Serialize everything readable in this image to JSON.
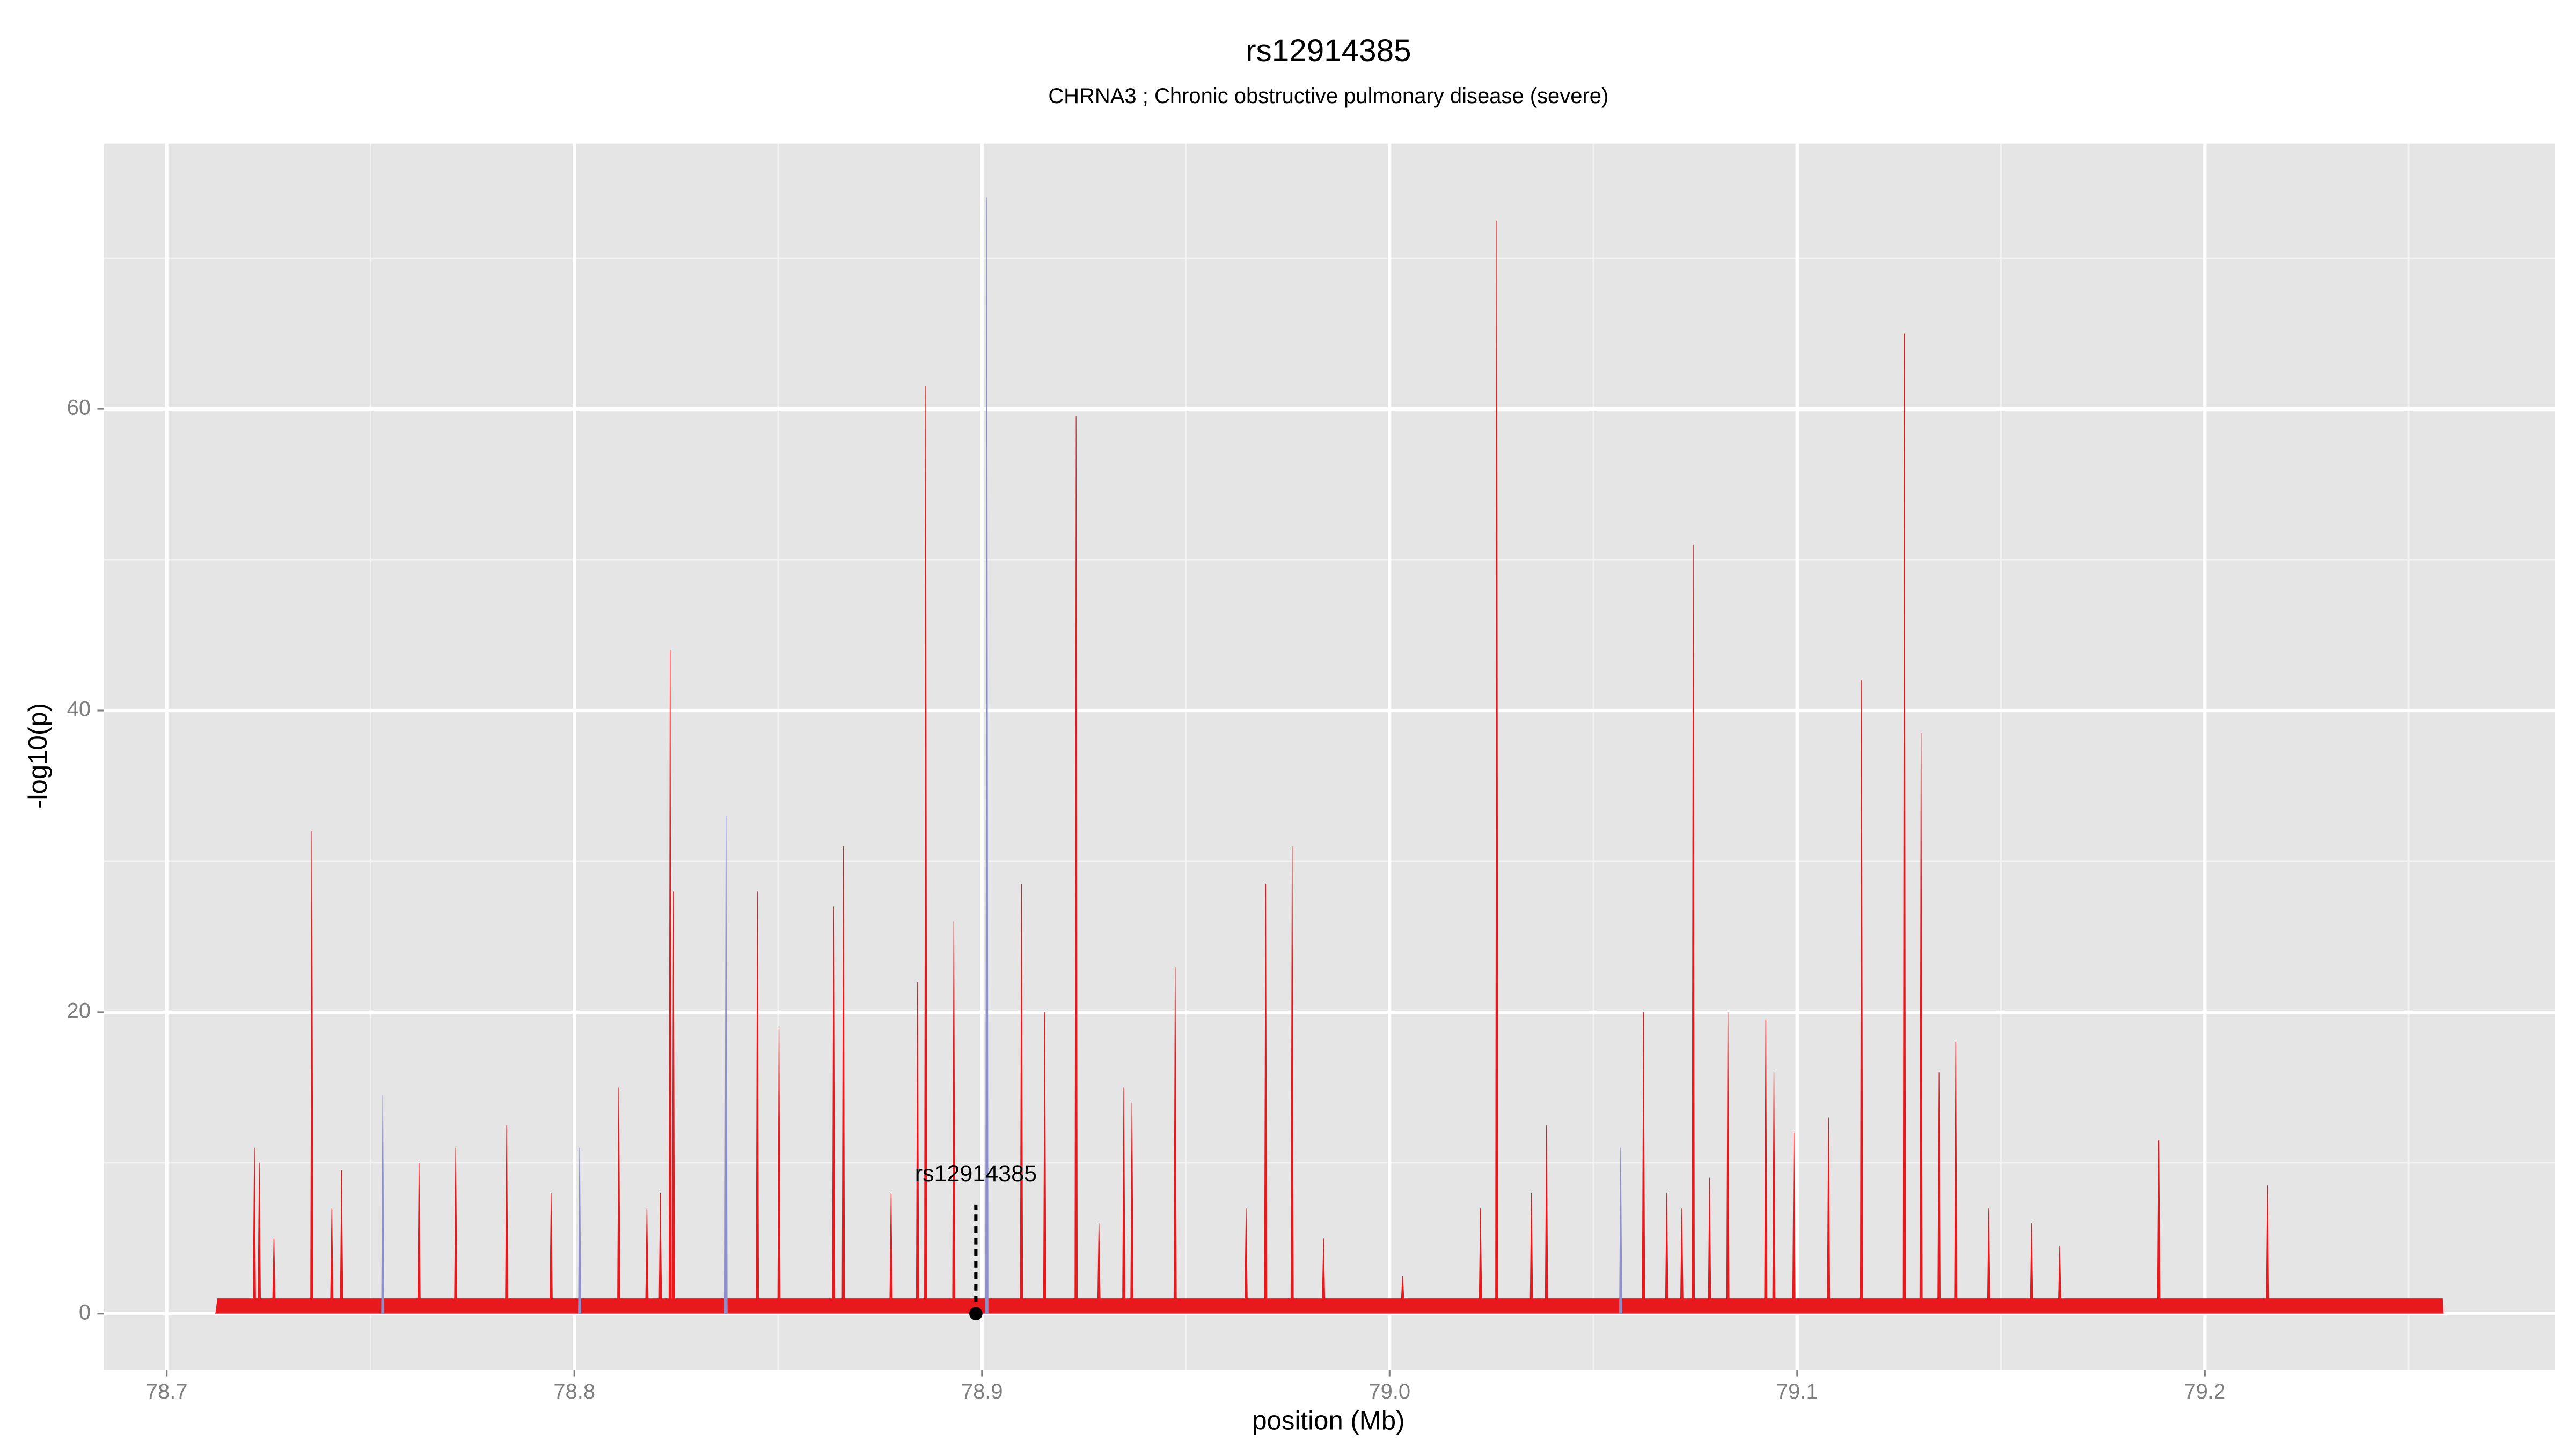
{
  "chart_data": {
    "type": "area",
    "title": "rs12914385",
    "subtitle": "CHRNA3 ; Chronic obstructive pulmonary disease (severe)",
    "x_label": "position (Mb)",
    "y_label": "-log10(p)",
    "xlim": [
      78.6846,
      79.2858
    ],
    "ylim": [
      -3.72,
      77.6
    ],
    "xticks": [
      78.7,
      78.8,
      78.9,
      {
        "value": 79.0,
        "label": "79.0"
      },
      79.1,
      79.2
    ],
    "yticks": [
      0,
      20,
      40,
      60
    ],
    "grid": true,
    "annotation": {
      "label": "rs12914385",
      "x": 78.8985,
      "y": 0
    },
    "series": [
      {
        "name": "red",
        "color": "#e8191c",
        "x": [
          78.712,
          78.7125,
          78.7212,
          78.7215,
          78.7218,
          78.7224,
          78.7227,
          78.723,
          78.726,
          78.7263,
          78.7266,
          78.7353,
          78.7356,
          78.7359,
          78.7402,
          78.7405,
          78.7408,
          78.7426,
          78.7429,
          78.7432,
          78.7616,
          78.7619,
          78.7622,
          78.7706,
          78.7709,
          78.7712,
          78.7831,
          78.7834,
          78.7837,
          78.794,
          78.7943,
          78.7946,
          78.8106,
          78.8109,
          78.8112,
          78.8175,
          78.8178,
          78.8181,
          78.8208,
          78.8211,
          78.8214,
          78.8232,
          78.8235,
          78.8238,
          78.824,
          78.8243,
          78.8246,
          78.8446,
          78.8449,
          78.8452,
          78.8499,
          78.8502,
          78.8505,
          78.8633,
          78.8636,
          78.8639,
          78.8657,
          78.866,
          78.8663,
          78.8774,
          78.8777,
          78.878,
          78.8839,
          78.8842,
          78.8845,
          78.8859,
          78.8862,
          78.8865,
          78.8928,
          78.8931,
          78.8934,
          78.9094,
          78.9097,
          78.91,
          78.9151,
          78.9154,
          78.9157,
          78.9228,
          78.9231,
          78.9234,
          78.9284,
          78.9287,
          78.929,
          78.9345,
          78.9348,
          78.9351,
          78.9365,
          78.9368,
          78.9371,
          78.9471,
          78.9474,
          78.9477,
          78.9645,
          78.9648,
          78.9651,
          78.9693,
          78.9696,
          78.9699,
          78.9758,
          78.9761,
          78.9764,
          78.9835,
          78.9838,
          78.9841,
          79.0029,
          79.0032,
          79.0035,
          79.022,
          79.0223,
          79.0226,
          79.026,
          79.0263,
          79.0266,
          79.0345,
          79.0348,
          79.0351,
          79.0382,
          79.0385,
          79.0388,
          79.062,
          79.0623,
          79.0626,
          79.0677,
          79.068,
          79.0683,
          79.0714,
          79.0717,
          79.072,
          79.0742,
          79.0745,
          79.0748,
          79.0782,
          79.0785,
          79.0788,
          79.0827,
          79.083,
          79.0833,
          79.092,
          79.0923,
          79.0926,
          79.094,
          79.0943,
          79.0946,
          79.0989,
          79.0992,
          79.0995,
          79.1074,
          79.1077,
          79.108,
          79.1155,
          79.1158,
          79.1161,
          79.126,
          79.1263,
          79.1266,
          79.1301,
          79.1304,
          79.1307,
          79.1345,
          79.1348,
          79.1351,
          79.1386,
          79.1389,
          79.1392,
          79.1467,
          79.147,
          79.1473,
          79.1572,
          79.1575,
          79.1578,
          79.1641,
          79.1644,
          79.1647,
          79.1884,
          79.1887,
          79.189,
          79.2151,
          79.2154,
          79.2157,
          79.2583,
          79.2585
        ],
        "values": [
          0,
          1,
          1,
          11,
          1,
          1,
          10,
          1,
          1,
          5,
          1,
          1,
          32,
          1,
          1,
          7,
          1,
          1,
          9.5,
          1,
          1,
          10,
          1,
          1,
          11,
          1,
          1,
          12.5,
          1,
          1,
          8,
          1,
          1,
          15,
          1,
          1,
          7,
          1,
          1,
          8,
          1,
          1,
          44,
          1,
          1,
          28,
          1,
          1,
          28,
          1,
          1,
          19,
          1,
          1,
          27,
          1,
          1,
          31,
          1,
          1,
          8,
          1,
          1,
          22,
          1,
          1,
          61.5,
          1,
          1,
          26,
          1,
          1,
          28.5,
          1,
          1,
          20,
          1,
          1,
          59.5,
          1,
          1,
          6,
          1,
          1,
          15,
          1,
          1,
          14,
          1,
          1,
          23,
          1,
          1,
          7,
          1,
          1,
          28.5,
          1,
          1,
          31,
          1,
          1,
          5,
          1,
          1,
          2.5,
          1,
          1,
          7,
          1,
          1,
          72.5,
          1,
          1,
          8,
          1,
          1,
          12.5,
          1,
          1,
          20,
          1,
          1,
          8,
          1,
          1,
          7,
          1,
          1,
          51,
          1,
          1,
          9,
          1,
          1,
          20,
          1,
          1,
          19.5,
          1,
          1,
          16,
          1,
          1,
          12,
          1,
          1,
          13,
          1,
          1,
          42,
          1,
          1,
          65,
          1,
          1,
          38.5,
          1,
          1,
          16,
          1,
          1,
          18,
          1,
          1,
          7,
          1,
          1,
          6,
          1,
          1,
          4.5,
          1,
          1,
          11.5,
          1,
          1,
          8.5,
          1,
          1,
          0
        ]
      },
      {
        "name": "blue",
        "color": "#8c8fc9",
        "x": [
          78.712,
          78.7527,
          78.753,
          78.7533,
          78.801,
          78.8013,
          78.8016,
          78.8369,
          78.8372,
          78.8375,
          78.9009,
          78.9012,
          78.9015,
          79.0564,
          79.0567,
          79.057,
          79.2585
        ],
        "values": [
          0,
          0,
          14.5,
          0,
          0,
          11,
          0,
          0,
          33,
          0,
          0,
          74,
          0,
          0,
          11,
          0,
          0
        ]
      }
    ]
  }
}
